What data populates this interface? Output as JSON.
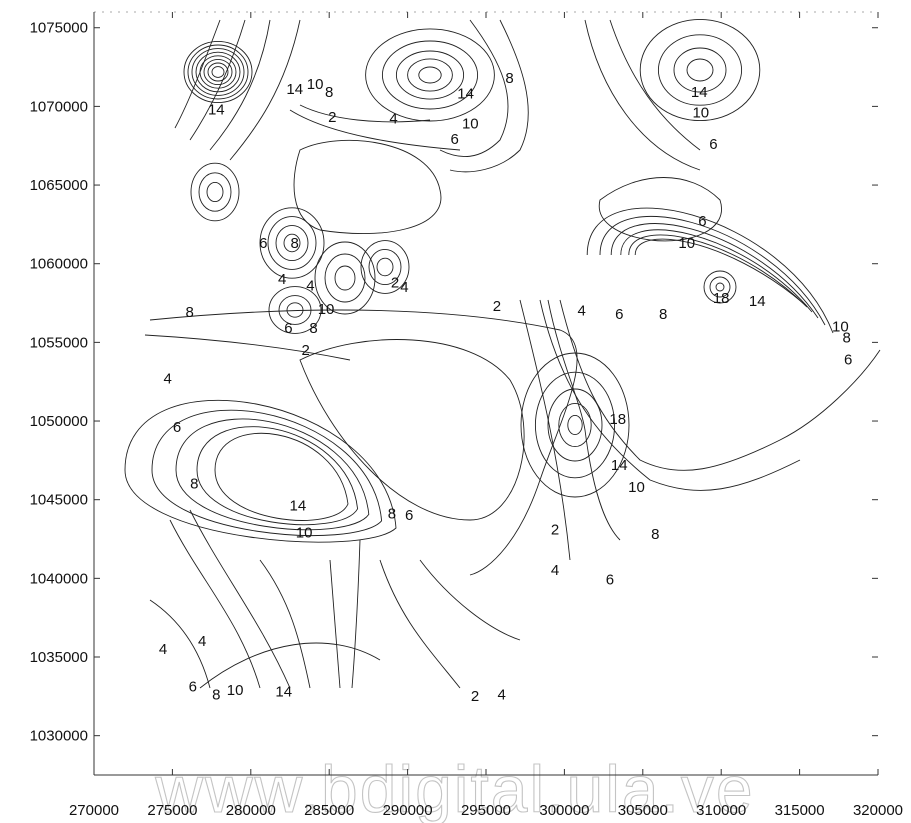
{
  "chart_data": {
    "type": "contour",
    "title": "",
    "xlabel": "",
    "ylabel": "",
    "xlim": [
      270000,
      320000
    ],
    "ylim": [
      1027500,
      1076000
    ],
    "x_ticks": [
      270000,
      275000,
      280000,
      285000,
      290000,
      295000,
      300000,
      305000,
      310000,
      315000,
      320000
    ],
    "y_ticks": [
      1030000,
      1035000,
      1040000,
      1045000,
      1050000,
      1055000,
      1060000,
      1065000,
      1070000,
      1075000
    ],
    "grid": false,
    "contour_labels": [
      {
        "x": 277800,
        "y": 1069500,
        "text": "14"
      },
      {
        "x": 282800,
        "y": 1070800,
        "text": "14"
      },
      {
        "x": 284100,
        "y": 1071100,
        "text": "10"
      },
      {
        "x": 285000,
        "y": 1070600,
        "text": "8"
      },
      {
        "x": 285200,
        "y": 1069000,
        "text": "2"
      },
      {
        "x": 289100,
        "y": 1068900,
        "text": "4"
      },
      {
        "x": 293700,
        "y": 1070500,
        "text": "14"
      },
      {
        "x": 294000,
        "y": 1068600,
        "text": "10"
      },
      {
        "x": 293000,
        "y": 1067600,
        "text": "6"
      },
      {
        "x": 296500,
        "y": 1071500,
        "text": "8"
      },
      {
        "x": 308600,
        "y": 1070600,
        "text": "14"
      },
      {
        "x": 308700,
        "y": 1069300,
        "text": "10"
      },
      {
        "x": 309500,
        "y": 1067300,
        "text": "6"
      },
      {
        "x": 308800,
        "y": 1062400,
        "text": "6"
      },
      {
        "x": 307800,
        "y": 1061000,
        "text": "10"
      },
      {
        "x": 280800,
        "y": 1061000,
        "text": "6"
      },
      {
        "x": 282800,
        "y": 1061000,
        "text": "8"
      },
      {
        "x": 282000,
        "y": 1058700,
        "text": "4"
      },
      {
        "x": 283800,
        "y": 1058300,
        "text": "4"
      },
      {
        "x": 284800,
        "y": 1056800,
        "text": "10"
      },
      {
        "x": 282400,
        "y": 1055600,
        "text": "6"
      },
      {
        "x": 284000,
        "y": 1055600,
        "text": "8"
      },
      {
        "x": 283500,
        "y": 1054200,
        "text": "2"
      },
      {
        "x": 289200,
        "y": 1058500,
        "text": "2"
      },
      {
        "x": 289800,
        "y": 1058200,
        "text": "4"
      },
      {
        "x": 276100,
        "y": 1056600,
        "text": "8"
      },
      {
        "x": 295700,
        "y": 1057000,
        "text": "2"
      },
      {
        "x": 301100,
        "y": 1056700,
        "text": "4"
      },
      {
        "x": 303500,
        "y": 1056500,
        "text": "6"
      },
      {
        "x": 306300,
        "y": 1056500,
        "text": "8"
      },
      {
        "x": 310000,
        "y": 1057500,
        "text": "18"
      },
      {
        "x": 312300,
        "y": 1057300,
        "text": "14"
      },
      {
        "x": 317600,
        "y": 1055700,
        "text": "10"
      },
      {
        "x": 318000,
        "y": 1055000,
        "text": "8"
      },
      {
        "x": 318100,
        "y": 1053600,
        "text": "6"
      },
      {
        "x": 274700,
        "y": 1052400,
        "text": "4"
      },
      {
        "x": 275300,
        "y": 1049300,
        "text": "6"
      },
      {
        "x": 303400,
        "y": 1049800,
        "text": "18"
      },
      {
        "x": 303500,
        "y": 1046900,
        "text": "14"
      },
      {
        "x": 304600,
        "y": 1045500,
        "text": "10"
      },
      {
        "x": 305800,
        "y": 1042500,
        "text": "8"
      },
      {
        "x": 276400,
        "y": 1045700,
        "text": "8"
      },
      {
        "x": 283000,
        "y": 1044300,
        "text": "14"
      },
      {
        "x": 283400,
        "y": 1042600,
        "text": "10"
      },
      {
        "x": 289000,
        "y": 1043800,
        "text": "8"
      },
      {
        "x": 290100,
        "y": 1043700,
        "text": "6"
      },
      {
        "x": 299400,
        "y": 1042800,
        "text": "2"
      },
      {
        "x": 299400,
        "y": 1040200,
        "text": "4"
      },
      {
        "x": 302900,
        "y": 1039600,
        "text": "6"
      },
      {
        "x": 274400,
        "y": 1035200,
        "text": "4"
      },
      {
        "x": 276900,
        "y": 1035700,
        "text": "4"
      },
      {
        "x": 276300,
        "y": 1032800,
        "text": "6"
      },
      {
        "x": 277800,
        "y": 1032300,
        "text": "8"
      },
      {
        "x": 279000,
        "y": 1032600,
        "text": "10"
      },
      {
        "x": 282100,
        "y": 1032500,
        "text": "14"
      },
      {
        "x": 294300,
        "y": 1032200,
        "text": "2"
      },
      {
        "x": 296000,
        "y": 1032300,
        "text": "4"
      }
    ]
  },
  "watermark": "www.bdigital.ula.ve"
}
